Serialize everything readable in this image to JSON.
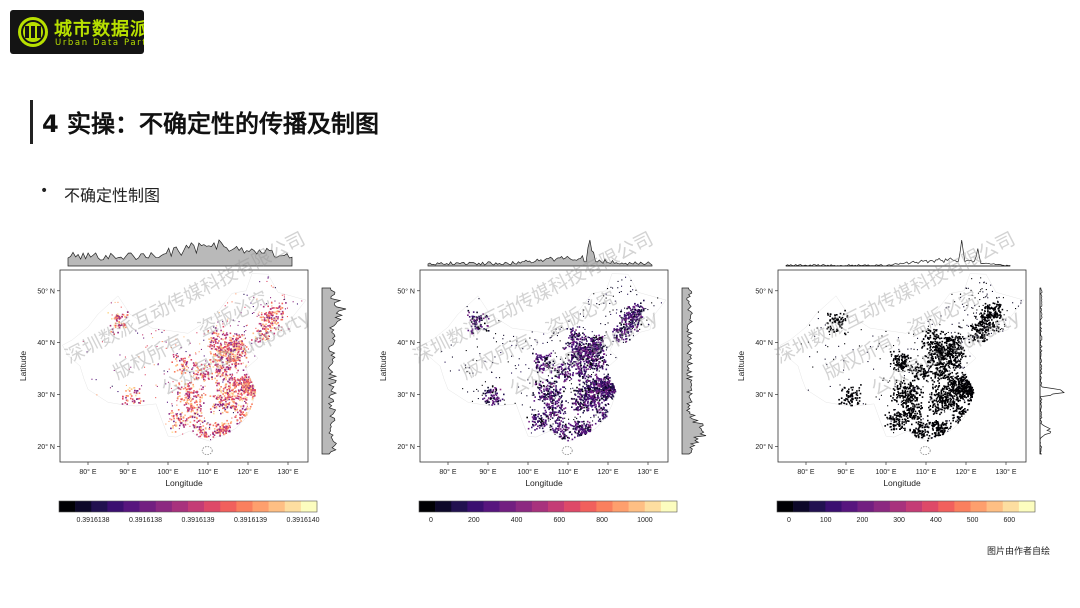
{
  "brand": {
    "logo_cn": "城市数据派",
    "logo_en": "Urban Data Party",
    "accent_color": "#b8e000"
  },
  "slide": {
    "title": "4  实操：不确定性的传播及制图",
    "bullet": "不确定性制图",
    "caption": "图片由作者自绘"
  },
  "watermark": {
    "line1": "深圳数派互动传媒科技有限公司",
    "line2": "版权所有，盗版必究",
    "line3": "公众号ID: udparty"
  },
  "chart_data": [
    {
      "type": "heatmap",
      "title": "",
      "xlabel": "Longitude",
      "ylabel": "Latitude",
      "x_ticks": [
        "80° E",
        "90° E",
        "100° E",
        "110° E",
        "120° E",
        "130° E"
      ],
      "y_ticks": [
        "20° N",
        "30° N",
        "40° N",
        "50° N"
      ],
      "xlim": [
        73,
        135
      ],
      "ylim": [
        17,
        54
      ],
      "palette": "magma",
      "colorbar_ticks": [
        "0.3916138",
        "0.3916138",
        "0.3916139",
        "0.3916139",
        "0.3916140"
      ],
      "marginals": true
    },
    {
      "type": "heatmap",
      "title": "",
      "xlabel": "Longitude",
      "ylabel": "Latitude",
      "x_ticks": [
        "80° E",
        "90° E",
        "100° E",
        "110° E",
        "120° E",
        "130° E"
      ],
      "y_ticks": [
        "20° N",
        "30° N",
        "40° N",
        "50° N"
      ],
      "xlim": [
        73,
        135
      ],
      "ylim": [
        17,
        54
      ],
      "palette": "magma",
      "colorbar_ticks": [
        "0",
        "200",
        "400",
        "600",
        "800",
        "1000"
      ],
      "colorbar_range": [
        0,
        1150
      ],
      "marginals": true
    },
    {
      "type": "heatmap",
      "title": "",
      "xlabel": "Longitude",
      "ylabel": "Latitude",
      "x_ticks": [
        "80° E",
        "90° E",
        "100° E",
        "110° E",
        "120° E",
        "130° E"
      ],
      "y_ticks": [
        "20° N",
        "30° N",
        "40° N",
        "50° N"
      ],
      "xlim": [
        73,
        135
      ],
      "ylim": [
        17,
        54
      ],
      "palette": "magma",
      "colorbar_ticks": [
        "0",
        "100",
        "200",
        "300",
        "400",
        "500",
        "600"
      ],
      "colorbar_range": [
        0,
        670
      ],
      "marginals": true
    }
  ]
}
